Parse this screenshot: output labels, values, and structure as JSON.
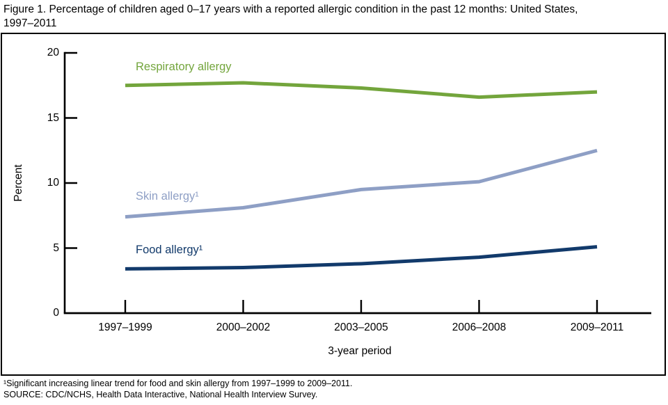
{
  "title_lines": [
    "Figure 1. Percentage of children aged 0–17 years with a reported allergic condition in the past 12 months: United States,",
    "1997–2011"
  ],
  "chart_data": {
    "type": "line",
    "title": "Figure 1. Percentage of children aged 0–17 years with a reported allergic condition in the past 12 months: United States, 1997–2011",
    "categories": [
      "1997–1999",
      "2000–2002",
      "2003–2005",
      "2006–2008",
      "2009–2011"
    ],
    "series": [
      {
        "name": "Respiratory allergy",
        "label": "Respiratory allergy",
        "color": "#73A53C",
        "values": [
          17.5,
          17.7,
          17.3,
          16.6,
          17.0
        ]
      },
      {
        "name": "Skin allergy",
        "label": "Skin allergy¹",
        "color": "#8E9FC5",
        "values": [
          7.4,
          8.1,
          9.5,
          10.1,
          12.5
        ]
      },
      {
        "name": "Food allergy",
        "label": "Food allergy¹",
        "color": "#123A6B",
        "values": [
          3.4,
          3.5,
          3.8,
          4.3,
          5.1
        ]
      }
    ],
    "xlabel": "3-year period",
    "ylabel": "Percent",
    "ylim": [
      0,
      20
    ],
    "yticks": [
      0,
      5,
      10,
      15,
      20
    ],
    "grid": false,
    "legend_position": "inline-labels",
    "axis_color": "#000000"
  },
  "footnotes": [
    "¹Significant increasing linear trend for food and skin allergy from 1997–1999 to 2009–2011.",
    "SOURCE: CDC/NCHS, Health Data Interactive, National Health Interview Survey."
  ]
}
